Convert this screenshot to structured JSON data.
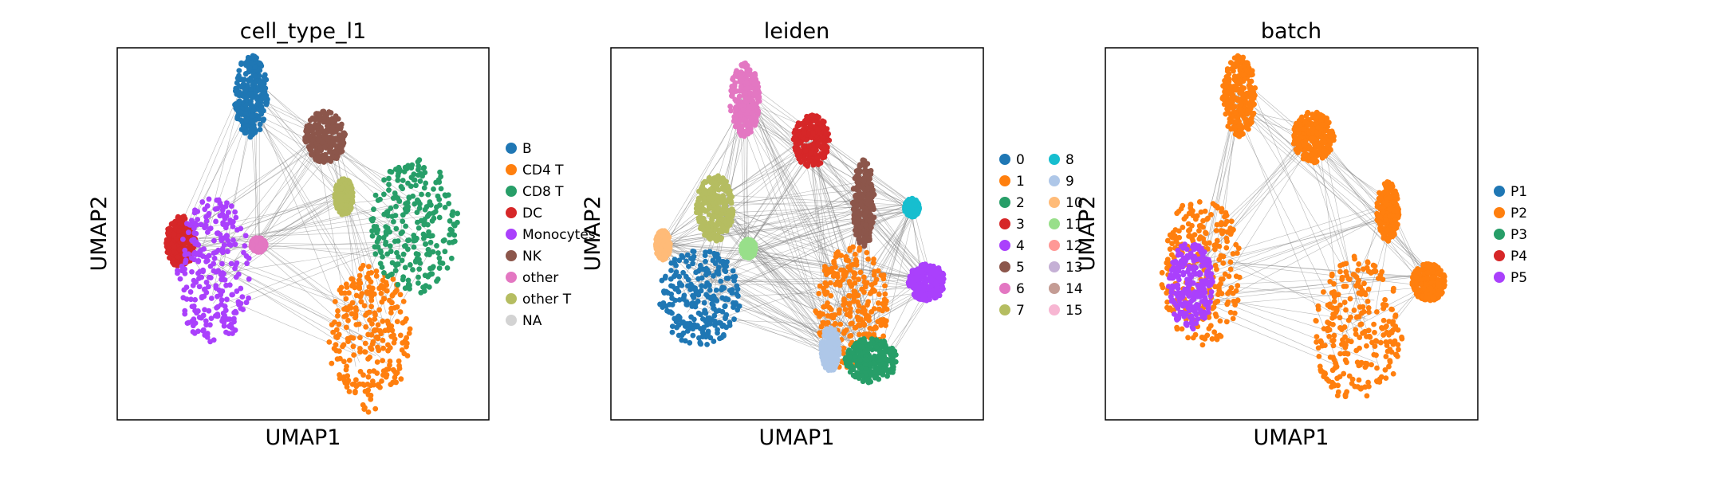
{
  "chart_data": [
    {
      "type": "scatter",
      "title": "cell_type_l1",
      "xlabel": "UMAP1",
      "ylabel": "UMAP2",
      "legend": {
        "placement": "right",
        "entries": [
          {
            "label": "B",
            "color": "#1f77b4"
          },
          {
            "label": "CD4 T",
            "color": "#ff7f0e"
          },
          {
            "label": "CD8 T",
            "color": "#279e68"
          },
          {
            "label": "DC",
            "color": "#d62728"
          },
          {
            "label": "Monocytes",
            "color": "#aa40fc"
          },
          {
            "label": "NK",
            "color": "#8c564b"
          },
          {
            "label": "other",
            "color": "#e377c2"
          },
          {
            "label": "other T",
            "color": "#b5bd61"
          },
          {
            "label": "NA",
            "color": "#d3d3d3"
          }
        ]
      },
      "clusters": [
        {
          "label": "B",
          "color": "#1f77b4",
          "cx": 0.36,
          "cy": 0.87,
          "rx": 0.045,
          "ry": 0.11
        },
        {
          "label": "CD4 T",
          "color": "#ff7f0e",
          "cx": 0.68,
          "cy": 0.22,
          "rx": 0.11,
          "ry": 0.2
        },
        {
          "label": "CD8 T",
          "color": "#279e68",
          "cx": 0.8,
          "cy": 0.52,
          "rx": 0.12,
          "ry": 0.18
        },
        {
          "label": "DC",
          "color": "#d62728",
          "cx": 0.17,
          "cy": 0.48,
          "rx": 0.04,
          "ry": 0.07
        },
        {
          "label": "Monocytes",
          "color": "#aa40fc",
          "cx": 0.26,
          "cy": 0.4,
          "rx": 0.1,
          "ry": 0.2
        },
        {
          "label": "NK",
          "color": "#8c564b",
          "cx": 0.56,
          "cy": 0.76,
          "rx": 0.055,
          "ry": 0.07
        },
        {
          "label": "other",
          "color": "#e377c2",
          "cx": 0.38,
          "cy": 0.47,
          "rx": 0.02,
          "ry": 0.02
        },
        {
          "label": "other T",
          "color": "#b5bd61",
          "cx": 0.61,
          "cy": 0.6,
          "rx": 0.025,
          "ry": 0.05
        }
      ],
      "grid": false
    },
    {
      "type": "scatter",
      "title": "leiden",
      "xlabel": "UMAP1",
      "ylabel": "UMAP2",
      "legend": {
        "placement": "right",
        "entries": [
          {
            "label": "0",
            "color": "#1f77b4"
          },
          {
            "label": "1",
            "color": "#ff7f0e"
          },
          {
            "label": "2",
            "color": "#279e68"
          },
          {
            "label": "3",
            "color": "#d62728"
          },
          {
            "label": "4",
            "color": "#aa40fc"
          },
          {
            "label": "5",
            "color": "#8c564b"
          },
          {
            "label": "6",
            "color": "#e377c2"
          },
          {
            "label": "7",
            "color": "#b5bd61"
          },
          {
            "label": "8",
            "color": "#17becf"
          },
          {
            "label": "9",
            "color": "#aec7e8"
          },
          {
            "label": "10",
            "color": "#ffbb78"
          },
          {
            "label": "11",
            "color": "#98df8a"
          },
          {
            "label": "12",
            "color": "#ff9896"
          },
          {
            "label": "13",
            "color": "#c5b0d5"
          },
          {
            "label": "14",
            "color": "#c49c94"
          },
          {
            "label": "15",
            "color": "#f7b6d2"
          }
        ]
      },
      "clusters": [
        {
          "label": "0",
          "color": "#1f77b4",
          "cx": 0.24,
          "cy": 0.33,
          "rx": 0.11,
          "ry": 0.13
        },
        {
          "label": "1",
          "color": "#ff7f0e",
          "cx": 0.65,
          "cy": 0.3,
          "rx": 0.1,
          "ry": 0.17
        },
        {
          "label": "2",
          "color": "#279e68",
          "cx": 0.7,
          "cy": 0.16,
          "rx": 0.07,
          "ry": 0.06
        },
        {
          "label": "3",
          "color": "#d62728",
          "cx": 0.54,
          "cy": 0.75,
          "rx": 0.05,
          "ry": 0.07
        },
        {
          "label": "4",
          "color": "#aa40fc",
          "cx": 0.85,
          "cy": 0.37,
          "rx": 0.05,
          "ry": 0.05
        },
        {
          "label": "5",
          "color": "#8c564b",
          "cx": 0.68,
          "cy": 0.58,
          "rx": 0.03,
          "ry": 0.12
        },
        {
          "label": "6",
          "color": "#e377c2",
          "cx": 0.36,
          "cy": 0.86,
          "rx": 0.04,
          "ry": 0.1
        },
        {
          "label": "7",
          "color": "#b5bd61",
          "cx": 0.28,
          "cy": 0.57,
          "rx": 0.05,
          "ry": 0.09
        },
        {
          "label": "8",
          "color": "#17becf",
          "cx": 0.81,
          "cy": 0.57,
          "rx": 0.02,
          "ry": 0.025
        },
        {
          "label": "9",
          "color": "#aec7e8",
          "cx": 0.59,
          "cy": 0.19,
          "rx": 0.025,
          "ry": 0.06
        },
        {
          "label": "10",
          "color": "#ffbb78",
          "cx": 0.14,
          "cy": 0.47,
          "rx": 0.02,
          "ry": 0.04
        },
        {
          "label": "11",
          "color": "#98df8a",
          "cx": 0.37,
          "cy": 0.46,
          "rx": 0.02,
          "ry": 0.025
        }
      ],
      "grid": false
    },
    {
      "type": "scatter",
      "title": "batch",
      "xlabel": "UMAP1",
      "ylabel": "UMAP2",
      "legend": {
        "placement": "right",
        "entries": [
          {
            "label": "P1",
            "color": "#1f77b4"
          },
          {
            "label": "P2",
            "color": "#ff7f0e"
          },
          {
            "label": "P3",
            "color": "#279e68"
          },
          {
            "label": "P4",
            "color": "#d62728"
          },
          {
            "label": "P5",
            "color": "#aa40fc"
          }
        ]
      },
      "clusters": [
        {
          "label": "P2",
          "color": "#ff7f0e",
          "cx": 0.26,
          "cy": 0.4,
          "rx": 0.11,
          "ry": 0.2
        },
        {
          "label": "P2",
          "color": "#ff7f0e",
          "cx": 0.68,
          "cy": 0.24,
          "rx": 0.12,
          "ry": 0.2
        },
        {
          "label": "P2",
          "color": "#ff7f0e",
          "cx": 0.36,
          "cy": 0.87,
          "rx": 0.045,
          "ry": 0.11
        },
        {
          "label": "P2",
          "color": "#ff7f0e",
          "cx": 0.56,
          "cy": 0.76,
          "rx": 0.055,
          "ry": 0.07
        },
        {
          "label": "P2",
          "color": "#ff7f0e",
          "cx": 0.87,
          "cy": 0.37,
          "rx": 0.045,
          "ry": 0.05
        },
        {
          "label": "P2",
          "color": "#ff7f0e",
          "cx": 0.76,
          "cy": 0.56,
          "rx": 0.03,
          "ry": 0.08
        },
        {
          "label": "P5",
          "color": "#aa40fc",
          "cx": 0.23,
          "cy": 0.36,
          "rx": 0.06,
          "ry": 0.12
        }
      ],
      "grid": false
    }
  ]
}
